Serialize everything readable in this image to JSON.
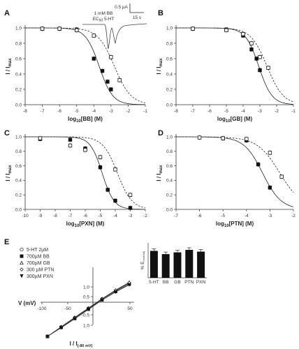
{
  "chart_data": [
    {
      "panel": "A",
      "type": "scatter",
      "xlabel_main": "log",
      "xlabel_sub": "10",
      "xlabel_rest": "[BB] (M)",
      "ylabel": "I / I",
      "ylabel_sub": "max",
      "xlim": [
        -8,
        -1
      ],
      "ylim": [
        0,
        1.0
      ],
      "x_ticks": [
        "-8",
        "-7",
        "-6",
        "-5",
        "-4",
        "-3",
        "-2",
        "-1"
      ],
      "y_ticks": [
        "0.0",
        "0.2",
        "0.4",
        "0.6",
        "0.8",
        "1.0"
      ],
      "series": [
        {
          "marker": "filled",
          "x": [
            -7,
            -6,
            -5,
            -4,
            -3.5,
            -3.2,
            -3
          ],
          "y": [
            0.99,
            0.99,
            0.98,
            0.6,
            0.44,
            0.3,
            0.2
          ]
        },
        {
          "marker": "open",
          "x": [
            -7,
            -6,
            -5,
            -4,
            -3,
            -2.5
          ],
          "y": [
            0.99,
            0.99,
            0.97,
            0.9,
            0.62,
            0.32
          ]
        }
      ],
      "inset": {
        "scale_current": "0.5 µA",
        "scale_time": "15 s",
        "label1": "1 mM BB",
        "label2": "EC",
        "label2_sub": "50",
        "label2_rest": " 5-HT"
      }
    },
    {
      "panel": "B",
      "type": "scatter",
      "xlabel_main": "log",
      "xlabel_sub": "10",
      "xlabel_rest": "[GB] (M)",
      "ylabel": "I / I",
      "ylabel_sub": "max",
      "xlim": [
        -8,
        -1
      ],
      "ylim": [
        0,
        1.0
      ],
      "x_ticks": [
        "-8",
        "-7",
        "-6",
        "-5",
        "-4",
        "-3",
        "-2",
        "-1"
      ],
      "y_ticks": [
        "0.0",
        "0.2",
        "0.4",
        "0.6",
        "0.8",
        "1.0"
      ],
      "series": [
        {
          "marker": "filled",
          "x": [
            -7,
            -5,
            -4,
            -3.5,
            -3.2,
            -3
          ],
          "y": [
            0.99,
            0.98,
            0.9,
            0.72,
            0.6,
            0.45
          ]
        },
        {
          "marker": "open",
          "x": [
            -7,
            -5,
            -4,
            -3.5,
            -3,
            -2.5
          ],
          "y": [
            0.99,
            0.97,
            0.92,
            0.8,
            0.62,
            0.48
          ]
        }
      ]
    },
    {
      "panel": "C",
      "type": "scatter",
      "xlabel_main": "log",
      "xlabel_sub": "10",
      "xlabel_rest": "[PXN] (M)",
      "ylabel": "I / I",
      "ylabel_sub": "max",
      "xlim": [
        -10,
        -2
      ],
      "ylim": [
        0,
        1.0
      ],
      "x_ticks": [
        "-10",
        "-9",
        "-8",
        "-7",
        "-6",
        "-5",
        "-4",
        "-3",
        "-2"
      ],
      "y_ticks": [
        "0.0",
        "0.2",
        "0.4",
        "0.6",
        "0.8",
        "1.0"
      ],
      "series": [
        {
          "marker": "filled",
          "x": [
            -9,
            -7,
            -6,
            -5,
            -4.5,
            -4,
            -3
          ],
          "y": [
            0.97,
            0.96,
            0.84,
            0.58,
            0.27,
            0.12,
            0.02
          ]
        },
        {
          "marker": "open",
          "x": [
            -9,
            -7,
            -6,
            -5,
            -4,
            -3
          ],
          "y": [
            0.98,
            0.88,
            0.82,
            0.72,
            0.55,
            0.2
          ]
        }
      ]
    },
    {
      "panel": "D",
      "type": "scatter",
      "xlabel_main": "log",
      "xlabel_sub": "10",
      "xlabel_rest": "[PTN] (M)",
      "ylabel": "I / I",
      "ylabel_sub": "max",
      "xlim": [
        -7,
        -2
      ],
      "ylim": [
        0,
        1.0
      ],
      "x_ticks": [
        "-7",
        "-6",
        "-5",
        "-4",
        "-3",
        "-2"
      ],
      "y_ticks": [
        "0.0",
        "0.2",
        "0.4",
        "0.6",
        "0.8",
        "1.0"
      ],
      "series": [
        {
          "marker": "filled",
          "x": [
            -5,
            -4,
            -3.5,
            -3
          ],
          "y": [
            0.98,
            0.95,
            0.62,
            0.3
          ]
        },
        {
          "marker": "open",
          "x": [
            -6,
            -5,
            -4,
            -3,
            -2.5
          ],
          "y": [
            0.99,
            0.98,
            0.97,
            0.78,
            0.45
          ]
        }
      ]
    },
    {
      "panel": "E",
      "type": "line",
      "xlabel": "V (mV)",
      "ylabel": "I / I",
      "ylabel_sub": "(-80 mV)",
      "xlim": [
        -100,
        50
      ],
      "ylim": [
        -1.0,
        1.0
      ],
      "x_ticks": [
        "-100",
        "-50",
        "0",
        "50"
      ],
      "y_ticks": [
        "1.0",
        "0.5",
        "-0.5",
        "1.0"
      ],
      "legend": [
        "5-HT 2µM",
        "700µM BB",
        "700µM GB",
        "300 µM PTN",
        "300µM PXN"
      ],
      "x": [
        -80,
        -60,
        -40,
        -20,
        0,
        20,
        40
      ],
      "series": [
        {
          "name": "5-HT 2µM",
          "y": [
            -1.0,
            -0.75,
            -0.5,
            -0.25,
            0.0,
            0.22,
            0.42
          ]
        },
        {
          "name": "700µM BB",
          "y": [
            -1.0,
            -0.76,
            -0.52,
            -0.27,
            -0.02,
            0.2,
            0.4
          ]
        },
        {
          "name": "700µM GB",
          "y": [
            -1.0,
            -0.74,
            -0.49,
            -0.24,
            0.01,
            0.24,
            0.45
          ]
        },
        {
          "name": "300 µM PTN",
          "y": [
            -1.0,
            -0.75,
            -0.5,
            -0.26,
            0.0,
            0.23,
            0.44
          ]
        },
        {
          "name": "300µM PXN",
          "y": [
            -1.0,
            -0.77,
            -0.53,
            -0.28,
            -0.03,
            0.19,
            0.38
          ]
        }
      ],
      "inset_bar": {
        "ylabel": "% E",
        "ylabel_sub": "(reversal)",
        "categories": [
          "5-HT",
          "BB",
          "GB",
          "PTN",
          "PXN"
        ],
        "values": [
          1.08,
          0.95,
          1.02,
          1.12,
          1.05
        ],
        "ylim": [
          0,
          1.4
        ]
      }
    }
  ]
}
